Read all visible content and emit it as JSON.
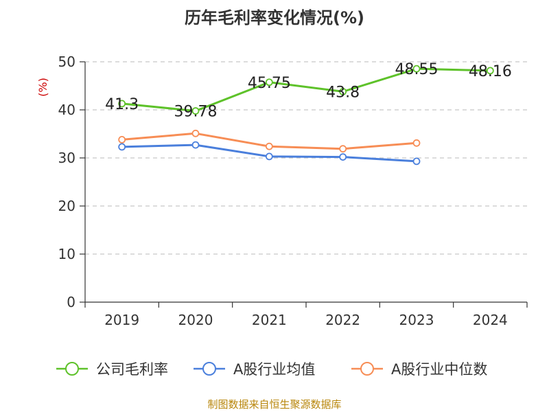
{
  "title": "历年毛利率变化情况(%)",
  "source": "制图数据来自恒生聚源数据库",
  "chart_data": {
    "type": "line",
    "title": "历年毛利率变化情况(%)",
    "ylabel": "(%)",
    "xlabel": "",
    "ylim": [
      0,
      50
    ],
    "yticks": [
      0,
      10,
      20,
      30,
      40,
      50
    ],
    "grid": true,
    "legend_position": "bottom",
    "categories": [
      "2019",
      "2020",
      "2021",
      "2022",
      "2023",
      "2024"
    ],
    "series": [
      {
        "name": "公司毛利率",
        "color": "#5ec22a",
        "values": [
          41.3,
          39.78,
          45.75,
          43.8,
          48.55,
          48.16
        ],
        "labels": [
          "41.3",
          "39.78",
          "45.75",
          "43.8",
          "48.55",
          "48.16"
        ]
      },
      {
        "name": "A股行业均值",
        "color": "#4a7fdc",
        "values": [
          32.3,
          32.7,
          30.3,
          30.2,
          29.3,
          null
        ]
      },
      {
        "name": "A股行业中位数",
        "color": "#f78d55",
        "values": [
          33.8,
          35.1,
          32.4,
          31.9,
          33.1,
          null
        ]
      }
    ]
  }
}
